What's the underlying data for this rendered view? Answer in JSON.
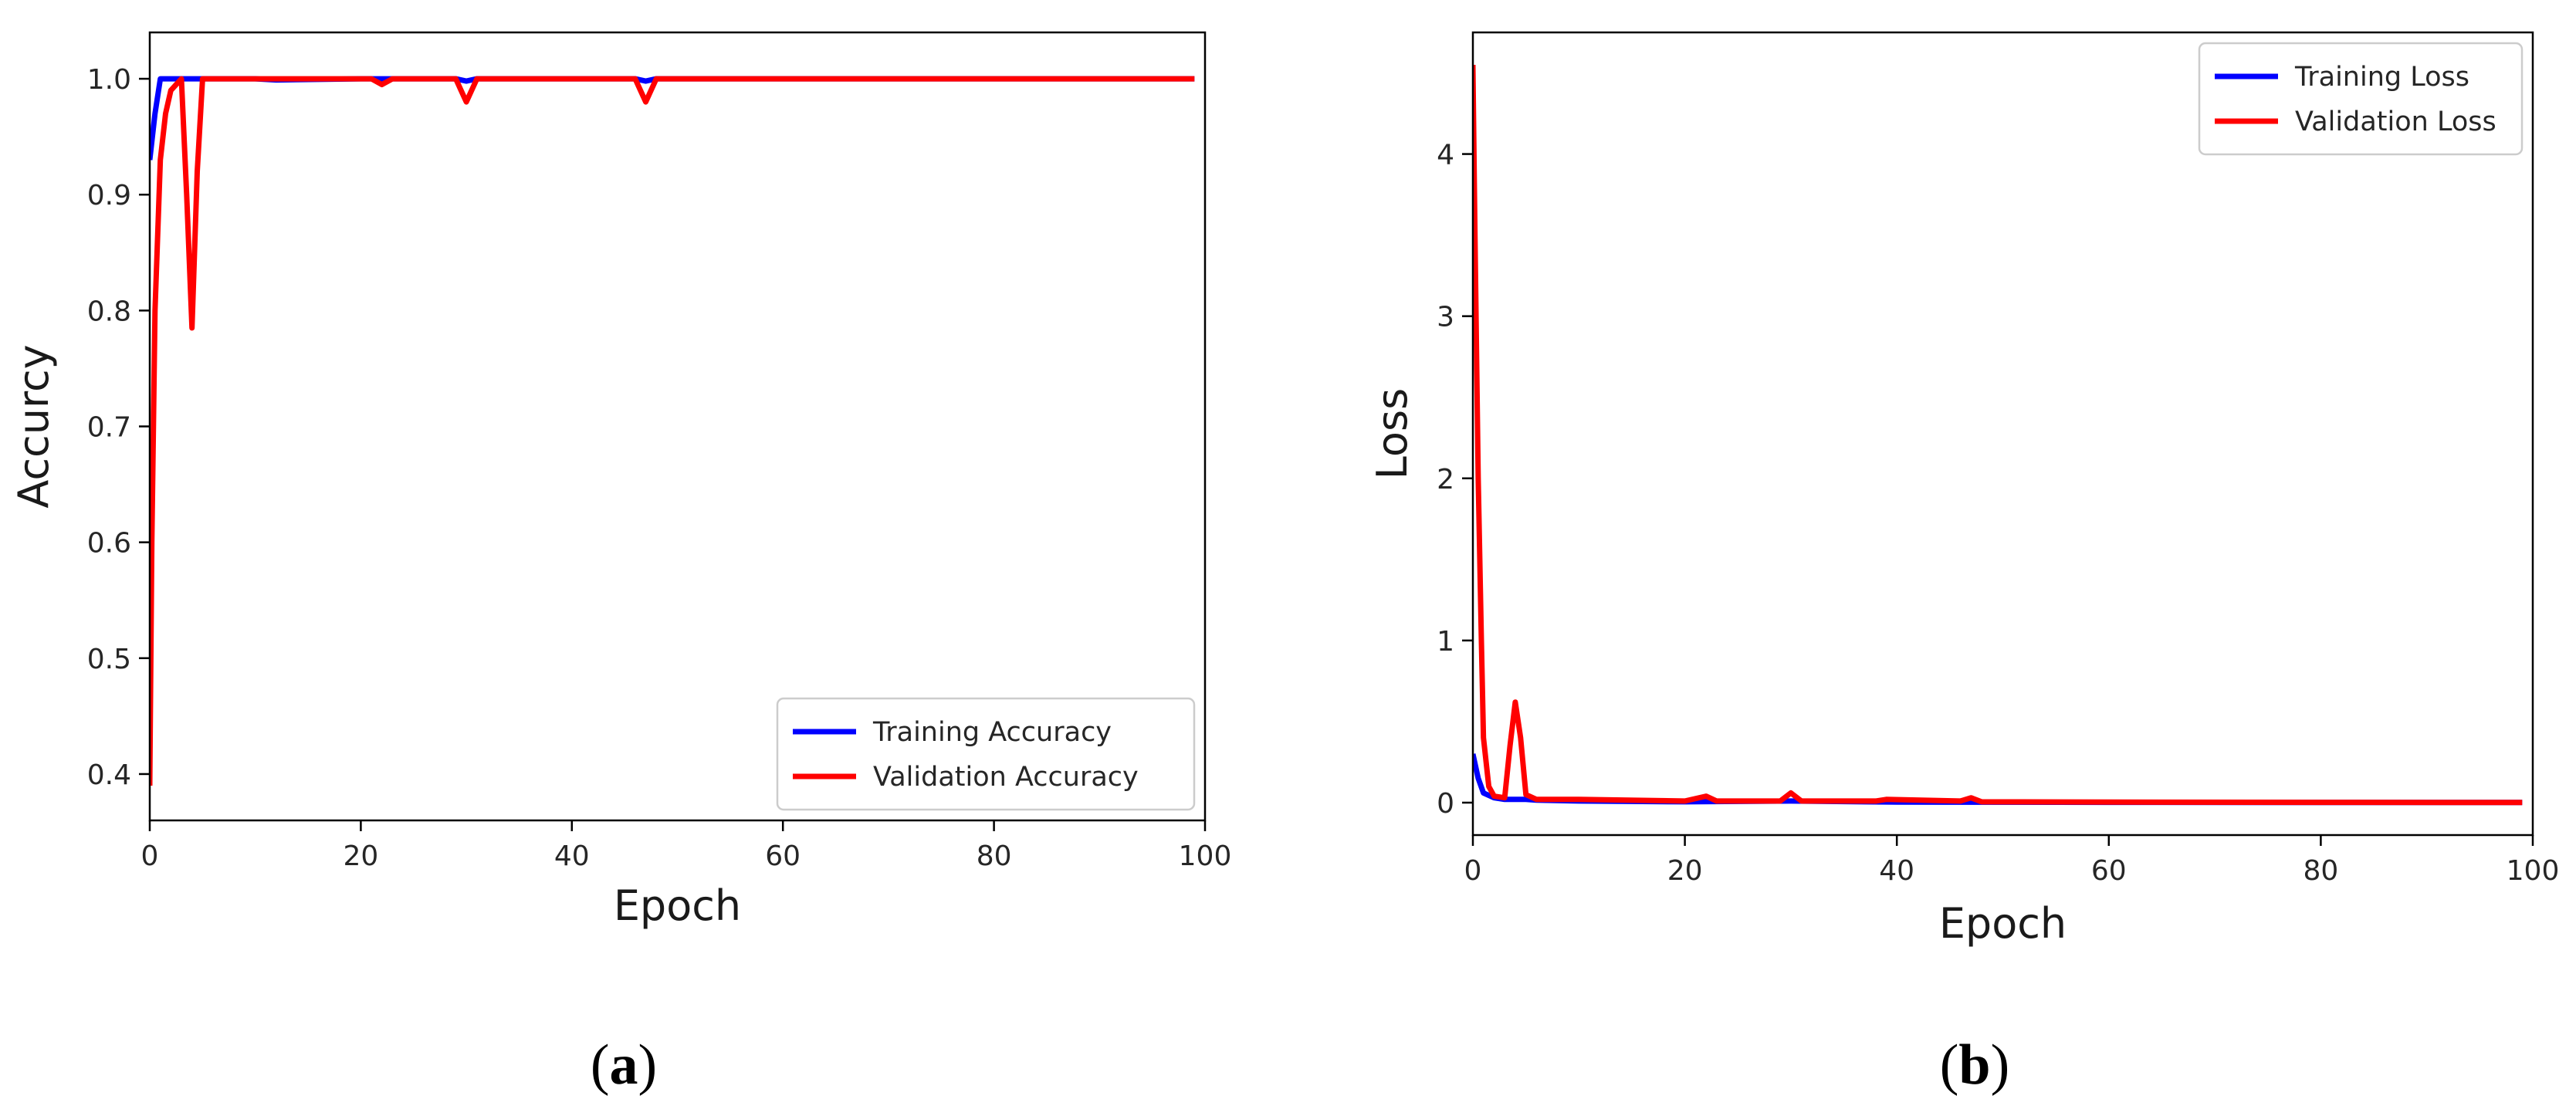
{
  "chart_data": [
    {
      "type": "line",
      "panel_label": "a",
      "xlabel": "Epoch",
      "ylabel": "Accurcy",
      "xlim": [
        0,
        100
      ],
      "ylim": [
        0.36,
        1.04
      ],
      "xticks": [
        0,
        20,
        40,
        60,
        80,
        100
      ],
      "yticks": [
        0.4,
        0.5,
        0.6,
        0.7,
        0.8,
        0.9,
        1.0
      ],
      "ytick_labels": [
        "0.4",
        "0.5",
        "0.6",
        "0.7",
        "0.8",
        "0.9",
        "1.0"
      ],
      "grid": false,
      "legend": "bottom-right",
      "series": [
        {
          "name": "Training Accuracy",
          "color": "#0000ff",
          "x": [
            0,
            0.5,
            1,
            1.5,
            2,
            3,
            4,
            5,
            10,
            12,
            20,
            22,
            29,
            30,
            31,
            46,
            47,
            48,
            60,
            80,
            99
          ],
          "y": [
            0.93,
            0.97,
            1.0,
            1.0,
            1.0,
            1.0,
            1.0,
            1.0,
            1.0,
            0.999,
            1.0,
            1.0,
            1.0,
            0.998,
            1.0,
            1.0,
            0.998,
            1.0,
            1.0,
            1.0,
            1.0
          ]
        },
        {
          "name": "Validation Accuracy",
          "color": "#ff0000",
          "x": [
            0,
            0.2,
            0.5,
            1,
            1.5,
            2,
            3,
            3.5,
            4,
            4.5,
            5,
            6,
            10,
            20,
            21,
            22,
            23,
            29,
            30,
            31,
            46,
            47,
            48,
            60,
            80,
            99
          ],
          "y": [
            0.39,
            0.6,
            0.8,
            0.93,
            0.97,
            0.99,
            1.0,
            0.9,
            0.785,
            0.92,
            1.0,
            1.0,
            1.0,
            1.0,
            1.0,
            0.995,
            1.0,
            1.0,
            0.98,
            1.0,
            1.0,
            0.98,
            1.0,
            1.0,
            1.0,
            1.0
          ]
        }
      ]
    },
    {
      "type": "line",
      "panel_label": "b",
      "xlabel": "Epoch",
      "ylabel": "Loss",
      "xlim": [
        0,
        100
      ],
      "ylim": [
        -0.2,
        4.75
      ],
      "xticks": [
        0,
        20,
        40,
        60,
        80,
        100
      ],
      "yticks": [
        0,
        1,
        2,
        3,
        4
      ],
      "ytick_labels": [
        "0",
        "1",
        "2",
        "3",
        "4"
      ],
      "grid": false,
      "legend": "top-right",
      "series": [
        {
          "name": "Training Loss",
          "color": "#0000ff",
          "x": [
            0,
            0.5,
            1,
            2,
            3,
            4,
            5,
            6,
            10,
            20,
            30,
            40,
            60,
            80,
            99
          ],
          "y": [
            0.3,
            0.15,
            0.06,
            0.03,
            0.02,
            0.02,
            0.02,
            0.015,
            0.01,
            0.005,
            0.01,
            0.003,
            0.002,
            0.001,
            0.001
          ]
        },
        {
          "name": "Validation Loss",
          "color": "#ff0000",
          "x": [
            0,
            0.2,
            0.5,
            0.8,
            1,
            1.5,
            2,
            3,
            3.5,
            4,
            4.5,
            5,
            6,
            10,
            20,
            22,
            23,
            25,
            29,
            30,
            31,
            38,
            39,
            46,
            47,
            48,
            60,
            80,
            99
          ],
          "y": [
            4.55,
            3.5,
            2.0,
            1.0,
            0.4,
            0.1,
            0.04,
            0.03,
            0.35,
            0.62,
            0.4,
            0.05,
            0.02,
            0.02,
            0.01,
            0.04,
            0.01,
            0.01,
            0.01,
            0.06,
            0.01,
            0.01,
            0.02,
            0.01,
            0.03,
            0.005,
            0.003,
            0.002,
            0.001
          ]
        }
      ]
    }
  ],
  "captions": [
    "a",
    "b"
  ]
}
